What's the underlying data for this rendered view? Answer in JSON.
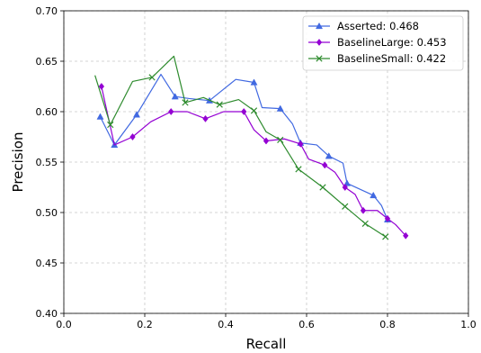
{
  "chart_data": {
    "type": "line",
    "title": "",
    "xlabel": "Recall",
    "ylabel": "Precision",
    "xlim": [
      0.0,
      1.0
    ],
    "ylim": [
      0.4,
      0.7
    ],
    "xticks": [
      0.0,
      0.2,
      0.4,
      0.6,
      0.8,
      1.0
    ],
    "yticks": [
      0.4,
      0.45,
      0.5,
      0.55,
      0.6,
      0.65,
      0.7
    ],
    "xtick_labels": [
      "0.0",
      "0.2",
      "0.4",
      "0.6",
      "0.8",
      "1.0"
    ],
    "ytick_labels": [
      "0.40",
      "0.45",
      "0.50",
      "0.55",
      "0.60",
      "0.65",
      "0.70"
    ],
    "grid": true,
    "legend_position": "top-right",
    "series": [
      {
        "name": "Asserted: 0.468",
        "color": "#4169e1",
        "marker": "triangle",
        "x": [
          0.09,
          0.125,
          0.18,
          0.24,
          0.275,
          0.31,
          0.36,
          0.425,
          0.47,
          0.49,
          0.535,
          0.565,
          0.585,
          0.625,
          0.655,
          0.69,
          0.7,
          0.765,
          0.785,
          0.8
        ],
        "y": [
          0.595,
          0.567,
          0.597,
          0.637,
          0.615,
          0.613,
          0.611,
          0.632,
          0.629,
          0.604,
          0.603,
          0.588,
          0.569,
          0.567,
          0.556,
          0.549,
          0.529,
          0.517,
          0.507,
          0.493
        ],
        "marker_indices": [
          0,
          1,
          2,
          4,
          6,
          8,
          10,
          12,
          14,
          16,
          17,
          19
        ]
      },
      {
        "name": "BaselineLarge: 0.453",
        "color": "#9400d3",
        "marker": "diamond",
        "x": [
          0.093,
          0.125,
          0.17,
          0.215,
          0.265,
          0.305,
          0.35,
          0.395,
          0.445,
          0.47,
          0.5,
          0.545,
          0.585,
          0.605,
          0.645,
          0.67,
          0.695,
          0.72,
          0.74,
          0.76,
          0.775,
          0.8,
          0.82,
          0.845
        ],
        "y": [
          0.625,
          0.567,
          0.575,
          0.59,
          0.6,
          0.6,
          0.593,
          0.6,
          0.6,
          0.582,
          0.571,
          0.573,
          0.568,
          0.553,
          0.547,
          0.54,
          0.525,
          0.518,
          0.502,
          0.502,
          0.502,
          0.494,
          0.488,
          0.477
        ],
        "marker_indices": [
          0,
          2,
          4,
          6,
          8,
          10,
          12,
          14,
          16,
          18,
          21,
          23
        ]
      },
      {
        "name": "BaselineSmall: 0.422",
        "color": "#2e8b2e",
        "marker": "x",
        "x": [
          0.077,
          0.115,
          0.17,
          0.218,
          0.272,
          0.3,
          0.345,
          0.385,
          0.432,
          0.47,
          0.5,
          0.535,
          0.58,
          0.64,
          0.695,
          0.745,
          0.795
        ],
        "y": [
          0.636,
          0.587,
          0.63,
          0.634,
          0.655,
          0.609,
          0.614,
          0.607,
          0.612,
          0.601,
          0.58,
          0.572,
          0.543,
          0.525,
          0.506,
          0.489,
          0.476
        ],
        "marker_indices": [
          1,
          3,
          5,
          7,
          9,
          11,
          12,
          13,
          14,
          15,
          16
        ]
      }
    ]
  }
}
